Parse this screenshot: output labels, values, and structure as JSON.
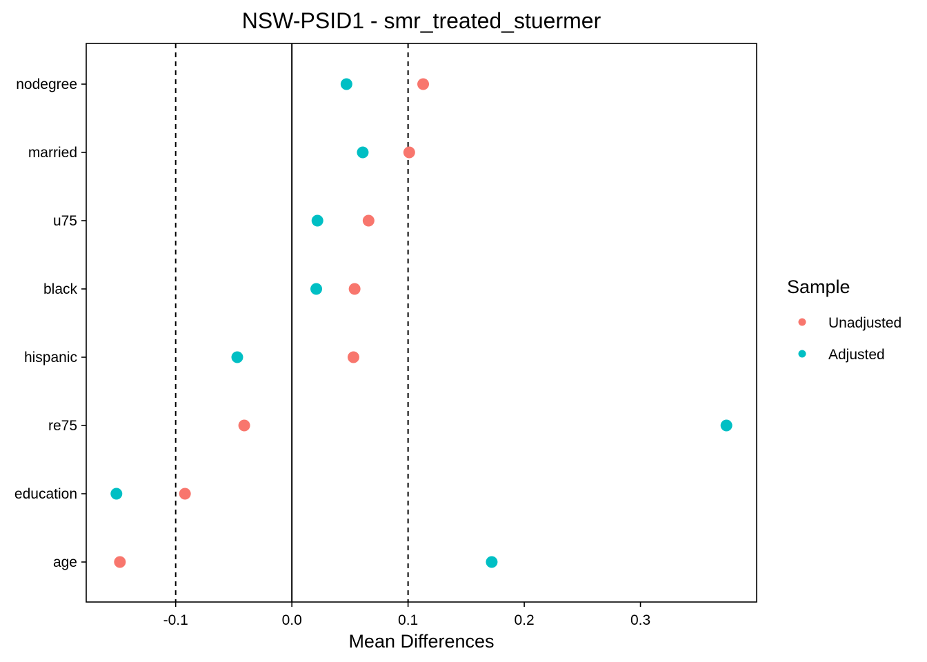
{
  "chart_data": {
    "type": "scatter",
    "title": "NSW-PSID1 - smr_treated_stuermer",
    "xlabel": "Mean Differences",
    "ylabel": "",
    "xlim": [
      -0.177,
      0.4
    ],
    "x_ticks": [
      -0.1,
      0.0,
      0.1,
      0.2,
      0.3
    ],
    "x_tick_labels": [
      "-0.1",
      "0.0",
      "0.1",
      "0.2",
      "0.3"
    ],
    "categories": [
      "nodegree",
      "married",
      "u75",
      "black",
      "hispanic",
      "re75",
      "education",
      "age"
    ],
    "reference_lines": {
      "solid": [
        0.0
      ],
      "dashed": [
        -0.1,
        0.1
      ]
    },
    "grid": false,
    "legend": {
      "title": "Sample",
      "position": "right"
    },
    "series": [
      {
        "name": "Unadjusted",
        "color": "#F8766D",
        "values": [
          0.113,
          0.101,
          0.066,
          0.054,
          0.053,
          -0.041,
          -0.092,
          -0.148
        ]
      },
      {
        "name": "Adjusted",
        "color": "#00BFC4",
        "values": [
          0.047,
          0.061,
          0.022,
          0.021,
          -0.047,
          0.374,
          -0.151,
          0.172
        ]
      }
    ]
  }
}
